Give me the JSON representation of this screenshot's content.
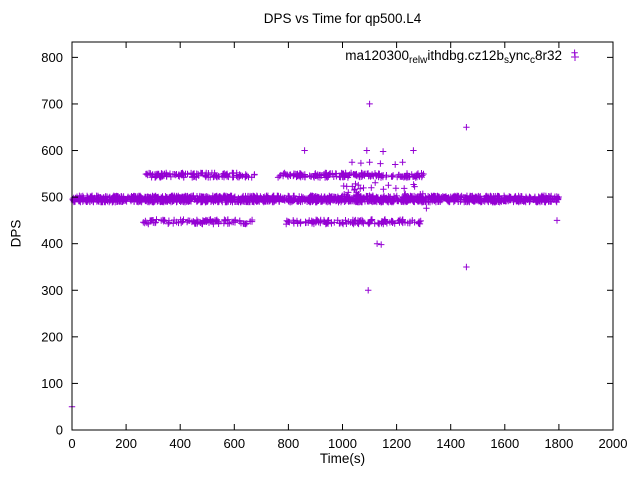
{
  "title": "DPS vs Time for qp500.L4",
  "legend": {
    "parts": [
      {
        "text": "ma120300",
        "sub": false
      },
      {
        "text": "rel",
        "sub": true
      },
      {
        "text": "w",
        "sub": true
      },
      {
        "text": "ithdbg.cz12b",
        "sub": false
      },
      {
        "text": "s",
        "sub": true
      },
      {
        "text": "ync",
        "sub": false
      },
      {
        "text": "c",
        "sub": true
      },
      {
        "text": "8r32",
        "sub": false
      }
    ]
  },
  "chart_data": {
    "type": "scatter",
    "title": "DPS vs Time for qp500.L4",
    "xlabel": "Time(s)",
    "ylabel": "DPS",
    "xlim": [
      0,
      2000
    ],
    "ylim": [
      0,
      833
    ],
    "xticks": [
      0,
      200,
      400,
      600,
      800,
      1000,
      1200,
      1400,
      1600,
      1800,
      2000
    ],
    "yticks": [
      0,
      100,
      200,
      300,
      400,
      500,
      600,
      700,
      800
    ],
    "marker": "plus",
    "color": "#9400d3",
    "series_label": "ma120300_rel_withdbg.cz12b_sync_c8r32",
    "bands": [
      {
        "y": 496,
        "y_jitter": 7,
        "segments": [
          [
            2,
            1800
          ]
        ],
        "count": 1500
      },
      {
        "y": 547,
        "y_jitter": 5,
        "segments": [
          [
            260,
            675
          ],
          [
            757,
            1300
          ]
        ],
        "count": 300
      },
      {
        "y": 447,
        "y_jitter": 5,
        "segments": [
          [
            262,
            668
          ],
          [
            783,
            1300
          ]
        ],
        "count": 220
      },
      {
        "y": 518,
        "y_jitter": 14,
        "segments": [
          [
            1000,
            1300
          ]
        ],
        "count": 26
      }
    ],
    "points": [
      [
        0,
        50
      ],
      [
        860,
        600
      ],
      [
        1090,
        600
      ],
      [
        1150,
        598
      ],
      [
        1262,
        600
      ],
      [
        1035,
        575
      ],
      [
        1068,
        573
      ],
      [
        1100,
        575
      ],
      [
        1140,
        572
      ],
      [
        1195,
        570
      ],
      [
        1222,
        575
      ],
      [
        1100,
        700
      ],
      [
        1458,
        650
      ],
      [
        1310,
        476
      ],
      [
        1128,
        400
      ],
      [
        1143,
        398
      ],
      [
        1095,
        300
      ],
      [
        1458,
        350
      ],
      [
        1793,
        450
      ],
      [
        1858,
        810
      ]
    ]
  }
}
